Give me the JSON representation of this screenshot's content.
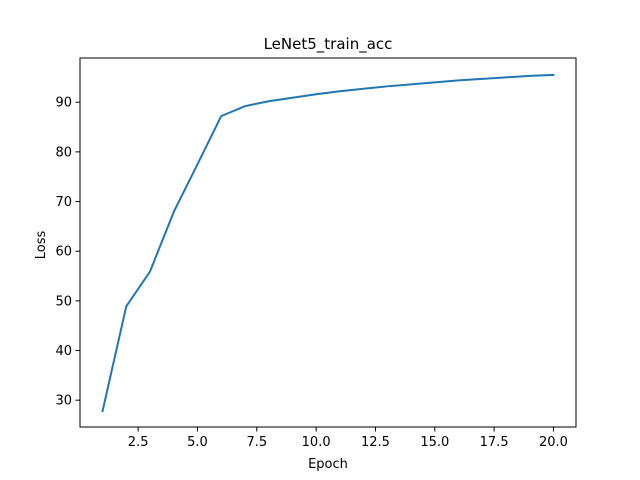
{
  "chart_data": {
    "type": "line",
    "title": "LeNet5_train_acc",
    "xlabel": "Epoch",
    "ylabel": "Loss",
    "xlim": [
      0.05,
      20.95
    ],
    "ylim": [
      24.6,
      98.9
    ],
    "xticks": [
      2.5,
      5.0,
      7.5,
      10.0,
      12.5,
      15.0,
      17.5,
      20.0
    ],
    "xtick_labels": [
      "2.5",
      "5.0",
      "7.5",
      "10.0",
      "12.5",
      "15.0",
      "17.5",
      "20.0"
    ],
    "yticks": [
      30,
      40,
      50,
      60,
      70,
      80,
      90
    ],
    "ytick_labels": [
      "30",
      "40",
      "50",
      "60",
      "70",
      "80",
      "90"
    ],
    "grid": false,
    "legend": "none",
    "series": [
      {
        "color": "#1f77b4",
        "x": [
          1,
          2,
          3,
          4,
          5,
          6,
          7,
          8,
          9,
          10,
          11,
          12,
          13,
          14,
          15,
          16,
          17,
          18,
          19,
          20
        ],
        "y": [
          27.8,
          48.9,
          55.9,
          67.9,
          77.5,
          87.2,
          89.2,
          90.2,
          90.9,
          91.6,
          92.2,
          92.7,
          93.2,
          93.6,
          94.0,
          94.4,
          94.7,
          95.0,
          95.3,
          95.5
        ]
      }
    ]
  }
}
